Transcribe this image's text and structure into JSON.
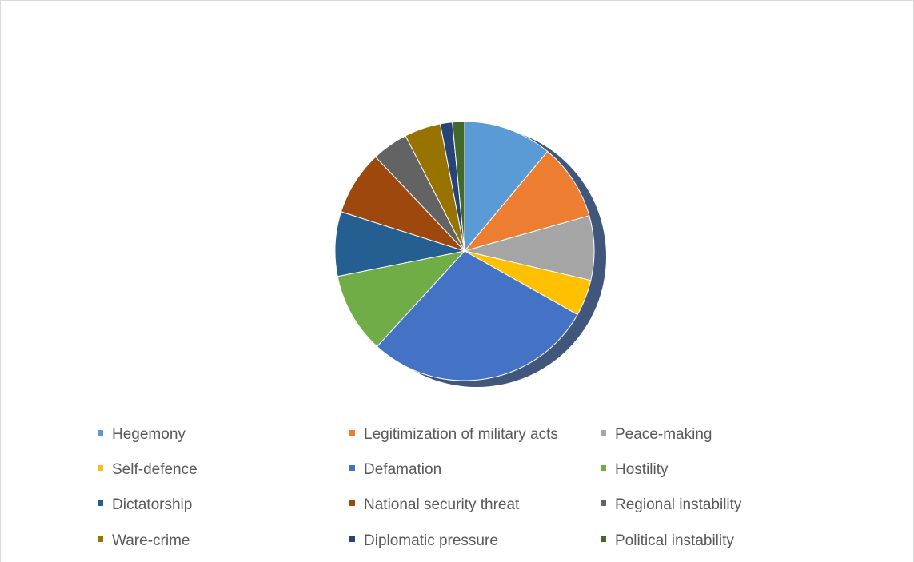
{
  "chart_data": {
    "type": "pie",
    "title": "",
    "legend_position": "bottom",
    "categories": [
      "Hegemony",
      "Legitimization of military acts",
      "Peace-making",
      "Self-defence",
      "Defamation",
      "Hostility",
      "Dictatorship",
      "National security threat",
      "Regional instability",
      "Ware-crime",
      "Diplomatic pressure",
      "Political instability"
    ],
    "values": [
      11,
      9.5,
      8,
      4.5,
      28.5,
      10,
      8,
      8,
      4.5,
      4.5,
      1.5,
      1.5
    ],
    "colors": [
      "#5b9bd5",
      "#ed7d31",
      "#a5a5a5",
      "#ffc000",
      "#4472c4",
      "#70ad47",
      "#255e91",
      "#9e480e",
      "#636363",
      "#997300",
      "#264478",
      "#43682b"
    ]
  }
}
